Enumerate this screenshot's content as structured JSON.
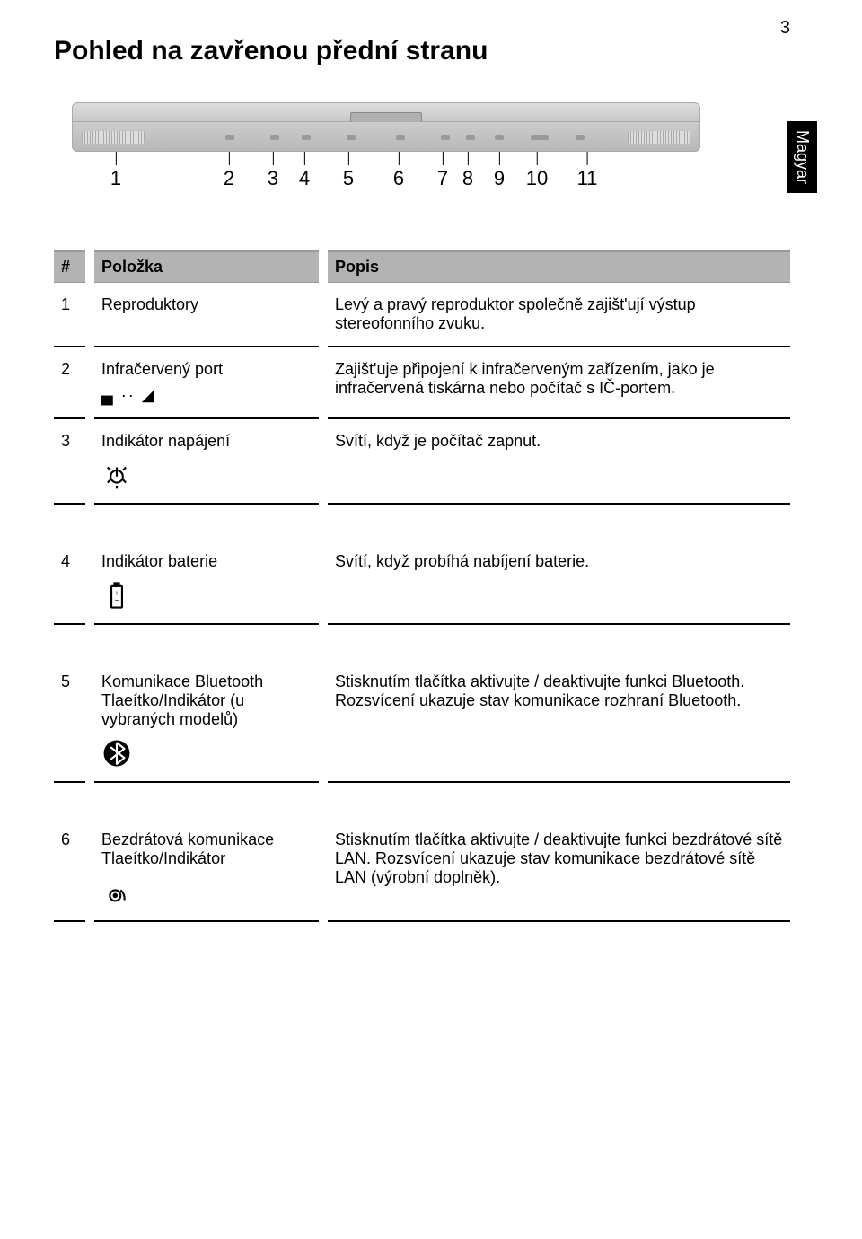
{
  "page_number": "3",
  "title": "Pohled na zavřenou přední stranu",
  "side_tab": "Magyar",
  "diagram": {
    "callouts": [
      "1",
      "2",
      "3",
      "4",
      "5",
      "6",
      "7",
      "8",
      "9",
      "10",
      "11"
    ],
    "callout_positions_pct": [
      7,
      25,
      32,
      37,
      44,
      52,
      59,
      63,
      68,
      74,
      82
    ]
  },
  "table": {
    "headers": {
      "num": "#",
      "item": "Položka",
      "desc": "Popis"
    },
    "rows": [
      {
        "num": "1",
        "item": "Reproduktory",
        "desc": "Levý a pravý reproduktor společně zajišt'ují výstup stereofonního zvuku.",
        "icon": null
      },
      {
        "num": "2",
        "item": "Infračervený port",
        "desc": "Zajišt'uje připojení k infračerveným zařízením, jako je infračervená tiskárna nebo počítač s IČ-portem.",
        "icon": "ir"
      },
      {
        "num": "3",
        "item": "Indikátor napájení",
        "desc": "Svítí, když je počítač zapnut.",
        "icon": "power",
        "gap_after": true
      },
      {
        "num": "4",
        "item": "Indikátor baterie",
        "desc": "Svítí, když probíhá nabíjení baterie.",
        "icon": "battery",
        "gap_after": true
      },
      {
        "num": "5",
        "item": "Komunikace Bluetooth Tlaeítko/Indikátor (u vybraných modelů)",
        "desc": "Stisknutím tlačítka aktivujte / deaktivujte funkci Bluetooth. Rozsvícení ukazuje stav komunikace rozhraní Bluetooth.",
        "icon": "bluetooth",
        "gap_after": true
      },
      {
        "num": "6",
        "item": "Bezdrátová komunikace Tlaeítko/Indikátor",
        "desc": "Stisknutím tlačítka aktivujte / deaktivujte funkci bezdrátové sítě LAN. Rozsvícení ukazuje stav komunikace bezdrátové sítě LAN (výrobní doplněk).",
        "icon": "wifi"
      }
    ]
  },
  "colors": {
    "header_bg": "#b3b3b3",
    "border": "#000000",
    "text": "#000000"
  }
}
